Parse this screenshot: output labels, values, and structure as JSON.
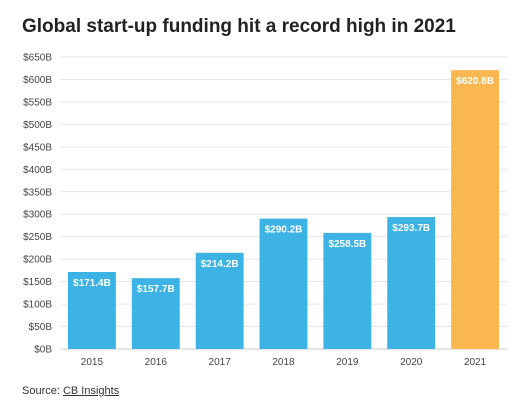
{
  "title": "Global start-up funding hit a record high in 2021",
  "source": {
    "prefix": "Source: ",
    "link_text": "CB Insights"
  },
  "colors": {
    "default_bar": "#3db2e5",
    "highlight_bar": "#fbb74f",
    "grid": "#e6e6e6",
    "axis": "#cccccc",
    "tick_text": "#444444"
  },
  "chart_data": {
    "type": "bar",
    "title": "Global start-up funding hit a record high in 2021",
    "categories": [
      "2015",
      "2016",
      "2017",
      "2018",
      "2019",
      "2020",
      "2021"
    ],
    "values": [
      171.4,
      157.7,
      214.2,
      290.2,
      258.5,
      293.7,
      620.8
    ],
    "data_labels": [
      "$171.4B",
      "$157.7B",
      "$214.2B",
      "$290.2B",
      "$258.5B",
      "$293.7B",
      "$620.8B"
    ],
    "highlight_index": 6,
    "ylim": [
      0,
      650
    ],
    "yticks": [
      0,
      50,
      100,
      150,
      200,
      250,
      300,
      350,
      400,
      450,
      500,
      550,
      600,
      650
    ],
    "ytick_labels": [
      "$0B",
      "$50B",
      "$100B",
      "$150B",
      "$200B",
      "$250B",
      "$300B",
      "$350B",
      "$400B",
      "$450B",
      "$500B",
      "$550B",
      "$600B",
      "$650B"
    ],
    "xlabel": "",
    "ylabel": "",
    "grid": true
  }
}
